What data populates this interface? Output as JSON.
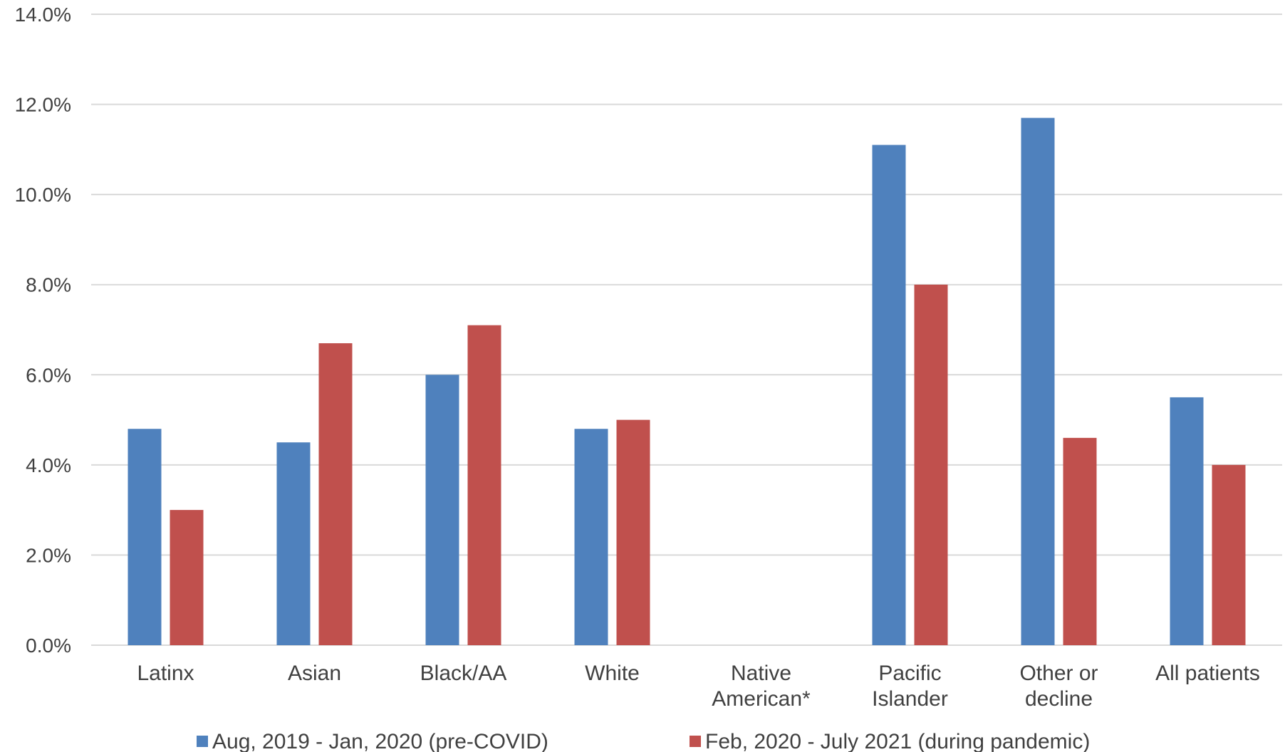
{
  "chart_data": {
    "type": "bar",
    "categories": [
      [
        "Latinx"
      ],
      [
        "Asian"
      ],
      [
        "Black/AA"
      ],
      [
        "White"
      ],
      [
        "Native",
        "American*"
      ],
      [
        "Pacific",
        "Islander"
      ],
      [
        "Other or",
        "decline"
      ],
      [
        "All patients"
      ]
    ],
    "series": [
      {
        "name": "Aug, 2019 - Jan, 2020 (pre-COVID)",
        "color": "#4F81BD",
        "values": [
          4.8,
          4.5,
          6.0,
          4.8,
          null,
          11.1,
          11.7,
          5.5
        ]
      },
      {
        "name": "Feb, 2020 - July 2021 (during pandemic)",
        "color": "#C0504D",
        "values": [
          3.0,
          6.7,
          7.1,
          5.0,
          null,
          8.0,
          4.6,
          4.0
        ]
      }
    ],
    "ylim": [
      0,
      14
    ],
    "yticks": [
      "0.0%",
      "2.0%",
      "4.0%",
      "6.0%",
      "8.0%",
      "10.0%",
      "12.0%",
      "14.0%"
    ],
    "grid": true,
    "legend_position": "bottom",
    "title": "",
    "xlabel": "",
    "ylabel": ""
  }
}
